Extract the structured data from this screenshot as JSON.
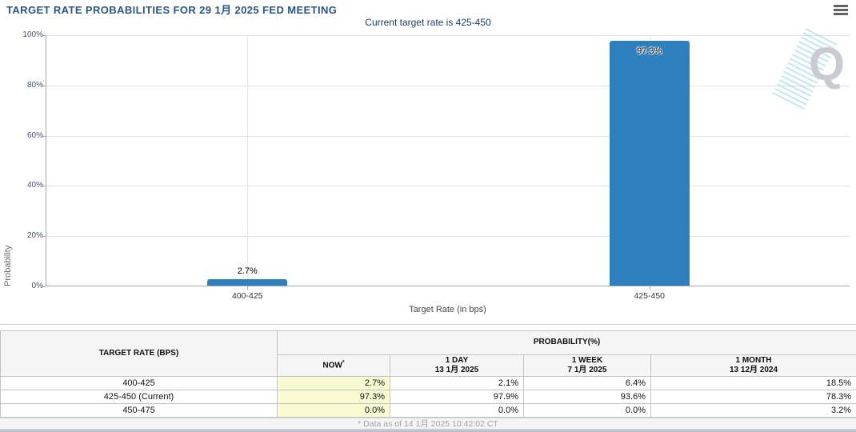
{
  "header": {
    "title": "TARGET RATE PROBABILITIES FOR 29 1月 2025 FED MEETING"
  },
  "subtitle": "Current target rate is 425-450",
  "chart_data": {
    "type": "bar",
    "title": "TARGET RATE PROBABILITIES FOR 29 1月 2025 FED MEETING",
    "subtitle": "Current target rate is 425-450",
    "categories": [
      "400-425",
      "425-450"
    ],
    "values": [
      2.7,
      97.3
    ],
    "value_labels": [
      "2.7%",
      "97.3%"
    ],
    "xlabel": "Target Rate (in bps)",
    "ylabel": "Probability",
    "ylim": [
      0,
      100
    ],
    "yticks": [
      "0%",
      "20%",
      "40%",
      "60%",
      "80%",
      "100%"
    ],
    "grid": true,
    "legend": "none",
    "bar_color": "#2d80bd",
    "watermark_letter": "Q"
  },
  "table": {
    "col1_header": "TARGET RATE (BPS)",
    "group_header": "PROBABILITY(%)",
    "sub_headers": [
      {
        "line1": "NOW",
        "sup": "*",
        "line2": ""
      },
      {
        "line1": "1 DAY",
        "line2": "13 1月 2025"
      },
      {
        "line1": "1 WEEK",
        "line2": "7 1月 2025"
      },
      {
        "line1": "1 MONTH",
        "line2": "13 12月 2024"
      }
    ],
    "rows": [
      {
        "label": "400-425",
        "now": "2.7%",
        "day": "2.1%",
        "week": "6.4%",
        "month": "18.5%"
      },
      {
        "label": "425-450 (Current)",
        "now": "97.3%",
        "day": "97.9%",
        "week": "93.6%",
        "month": "78.3%"
      },
      {
        "label": "450-475",
        "now": "0.0%",
        "day": "0.0%",
        "week": "0.0%",
        "month": "3.2%"
      }
    ],
    "footnote": "* Data as of 14 1月 2025 10:42:02 CT"
  },
  "colors": {
    "bar": "#2d80bd",
    "now_column_bg": "#fafad2",
    "title_text": "#2a5483"
  }
}
